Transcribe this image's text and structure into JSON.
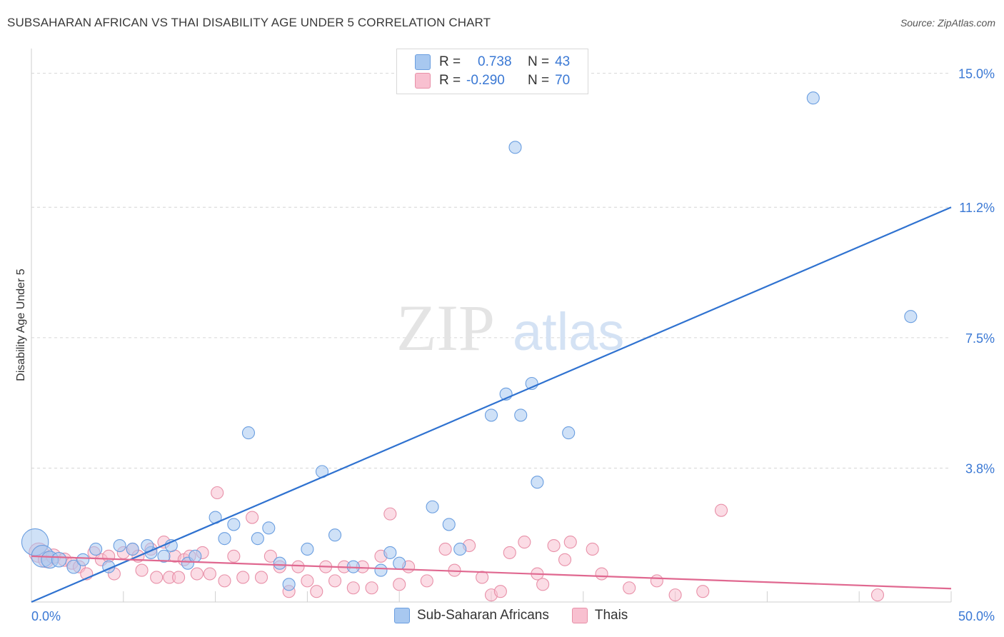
{
  "title": "SUBSAHARAN AFRICAN VS THAI DISABILITY AGE UNDER 5 CORRELATION CHART",
  "source": "Source: ZipAtlas.com",
  "watermark": {
    "zip": "ZIP",
    "atlas": "atlas"
  },
  "legend": {
    "rows": [
      {
        "r_label": "R =",
        "r_value": "0.738",
        "n_label": "N =",
        "n_value": "43",
        "color": "#a8c8f0",
        "border": "#6a9ee0"
      },
      {
        "r_label": "R =",
        "r_value": "-0.290",
        "n_label": "N =",
        "n_value": "70",
        "color": "#f8c0d0",
        "border": "#e890a8"
      }
    ]
  },
  "bottom_legend": [
    {
      "label": "Sub-Saharan Africans",
      "color": "#a8c8f0",
      "border": "#6a9ee0"
    },
    {
      "label": "Thais",
      "color": "#f8c0d0",
      "border": "#e890a8"
    }
  ],
  "chart_data": {
    "type": "scatter",
    "title": "SUBSAHARAN AFRICAN VS THAI DISABILITY AGE UNDER 5 CORRELATION CHART",
    "xlabel": "",
    "ylabel": "Disability Age Under 5",
    "xlim": [
      0,
      50
    ],
    "ylim": [
      0,
      15.5
    ],
    "x_tick_labels": [
      "0.0%",
      "50.0%"
    ],
    "y_ticks": [
      3.8,
      7.5,
      11.2,
      15.0
    ],
    "y_tick_labels": [
      "3.8%",
      "7.5%",
      "11.2%",
      "15.0%"
    ],
    "grid": true,
    "legend_position": "top-center",
    "series": [
      {
        "name": "Sub-Saharan Africans",
        "color": "#6a9ee0",
        "fill": "#a8c8f0",
        "trend": {
          "x": [
            0,
            50
          ],
          "y": [
            0.0,
            11.2
          ]
        },
        "points": [
          [
            0.2,
            1.7,
            2.2
          ],
          [
            0.6,
            1.3,
            1.8
          ],
          [
            1.0,
            1.2,
            1.4
          ],
          [
            1.5,
            1.2,
            1.2
          ],
          [
            2.3,
            1.0,
            1.1
          ],
          [
            2.8,
            1.2,
            1.0
          ],
          [
            3.5,
            1.5,
            1.0
          ],
          [
            4.2,
            1.0,
            1.0
          ],
          [
            4.8,
            1.6,
            1.0
          ],
          [
            5.5,
            1.5,
            1.0
          ],
          [
            6.5,
            1.4,
            1.0
          ],
          [
            6.3,
            1.6,
            1.0
          ],
          [
            7.2,
            1.3,
            1.0
          ],
          [
            7.6,
            1.6,
            1.0
          ],
          [
            8.5,
            1.1,
            1.0
          ],
          [
            8.9,
            1.3,
            1.0
          ],
          [
            10.0,
            2.4,
            1.0
          ],
          [
            10.5,
            1.8,
            1.0
          ],
          [
            11.0,
            2.2,
            1.0
          ],
          [
            11.8,
            4.8,
            1.0
          ],
          [
            12.3,
            1.8,
            1.0
          ],
          [
            12.9,
            2.1,
            1.0
          ],
          [
            14.0,
            0.5,
            1.0
          ],
          [
            13.5,
            1.1,
            1.0
          ],
          [
            15.0,
            1.5,
            1.0
          ],
          [
            15.8,
            3.7,
            1.0
          ],
          [
            16.5,
            1.9,
            1.0
          ],
          [
            17.5,
            1.0,
            1.0
          ],
          [
            19.0,
            0.9,
            1.0
          ],
          [
            19.5,
            1.4,
            1.0
          ],
          [
            20.0,
            1.1,
            1.0
          ],
          [
            21.8,
            2.7,
            1.0
          ],
          [
            22.7,
            2.2,
            1.0
          ],
          [
            23.3,
            1.5,
            1.0
          ],
          [
            25.0,
            5.3,
            1.0
          ],
          [
            25.8,
            5.9,
            1.0
          ],
          [
            26.3,
            12.9,
            1.0
          ],
          [
            26.6,
            5.3,
            1.0
          ],
          [
            27.2,
            6.2,
            1.0
          ],
          [
            27.5,
            3.4,
            1.0
          ],
          [
            29.2,
            4.8,
            1.0
          ],
          [
            42.5,
            14.3,
            1.0
          ],
          [
            47.8,
            8.1,
            1.0
          ]
        ]
      },
      {
        "name": "Thais",
        "color": "#e890a8",
        "fill": "#f8c0d0",
        "trend": {
          "x": [
            0,
            50
          ],
          "y": [
            1.3,
            0.38
          ]
        },
        "points": [
          [
            0.4,
            1.4,
            1.6
          ],
          [
            0.8,
            1.2,
            1.3
          ],
          [
            1.2,
            1.3,
            1.2
          ],
          [
            1.8,
            1.2,
            1.1
          ],
          [
            2.2,
            1.1,
            1.0
          ],
          [
            2.6,
            1.0,
            1.0
          ],
          [
            3.0,
            0.8,
            1.0
          ],
          [
            3.4,
            1.4,
            1.0
          ],
          [
            3.8,
            1.2,
            1.0
          ],
          [
            4.2,
            1.3,
            1.0
          ],
          [
            4.5,
            0.8,
            1.0
          ],
          [
            5.0,
            1.4,
            1.0
          ],
          [
            5.5,
            1.5,
            1.0
          ],
          [
            5.8,
            1.3,
            1.0
          ],
          [
            6.0,
            0.9,
            1.0
          ],
          [
            6.5,
            1.5,
            1.0
          ],
          [
            6.8,
            0.7,
            1.0
          ],
          [
            7.2,
            1.7,
            1.0
          ],
          [
            7.5,
            0.7,
            1.0
          ],
          [
            7.8,
            1.3,
            1.0
          ],
          [
            8.0,
            0.7,
            1.0
          ],
          [
            8.3,
            1.2,
            1.0
          ],
          [
            8.6,
            1.3,
            1.0
          ],
          [
            9.0,
            0.8,
            1.0
          ],
          [
            9.3,
            1.4,
            1.0
          ],
          [
            9.7,
            0.8,
            1.0
          ],
          [
            10.1,
            3.1,
            1.0
          ],
          [
            10.5,
            0.6,
            1.0
          ],
          [
            11.0,
            1.3,
            1.0
          ],
          [
            11.5,
            0.7,
            1.0
          ],
          [
            12.0,
            2.4,
            1.0
          ],
          [
            12.5,
            0.7,
            1.0
          ],
          [
            13.0,
            1.3,
            1.0
          ],
          [
            13.5,
            1.0,
            1.0
          ],
          [
            14.0,
            0.3,
            1.0
          ],
          [
            14.5,
            1.0,
            1.0
          ],
          [
            15.0,
            0.6,
            1.0
          ],
          [
            15.5,
            0.3,
            1.0
          ],
          [
            16.0,
            1.0,
            1.0
          ],
          [
            16.5,
            0.6,
            1.0
          ],
          [
            17.0,
            1.0,
            1.0
          ],
          [
            17.5,
            0.4,
            1.0
          ],
          [
            18.0,
            1.0,
            1.0
          ],
          [
            18.5,
            0.4,
            1.0
          ],
          [
            19.0,
            1.3,
            1.0
          ],
          [
            19.5,
            2.5,
            1.0
          ],
          [
            20.0,
            0.5,
            1.0
          ],
          [
            20.5,
            1.0,
            1.0
          ],
          [
            21.5,
            0.6,
            1.0
          ],
          [
            22.5,
            1.5,
            1.0
          ],
          [
            23.0,
            0.9,
            1.0
          ],
          [
            23.8,
            1.6,
            1.0
          ],
          [
            24.5,
            0.7,
            1.0
          ],
          [
            25.0,
            0.2,
            1.0
          ],
          [
            25.5,
            0.3,
            1.0
          ],
          [
            26.0,
            1.4,
            1.0
          ],
          [
            26.8,
            1.7,
            1.0
          ],
          [
            27.5,
            0.8,
            1.0
          ],
          [
            27.8,
            0.5,
            1.0
          ],
          [
            28.4,
            1.6,
            1.0
          ],
          [
            29.0,
            1.2,
            1.0
          ],
          [
            29.3,
            1.7,
            1.0
          ],
          [
            30.5,
            1.5,
            1.0
          ],
          [
            31.0,
            0.8,
            1.0
          ],
          [
            32.5,
            0.4,
            1.0
          ],
          [
            34.0,
            0.6,
            1.0
          ],
          [
            35.0,
            0.2,
            1.0
          ],
          [
            36.5,
            0.3,
            1.0
          ],
          [
            37.5,
            2.6,
            1.0
          ],
          [
            46.0,
            0.2,
            1.0
          ]
        ]
      }
    ]
  }
}
